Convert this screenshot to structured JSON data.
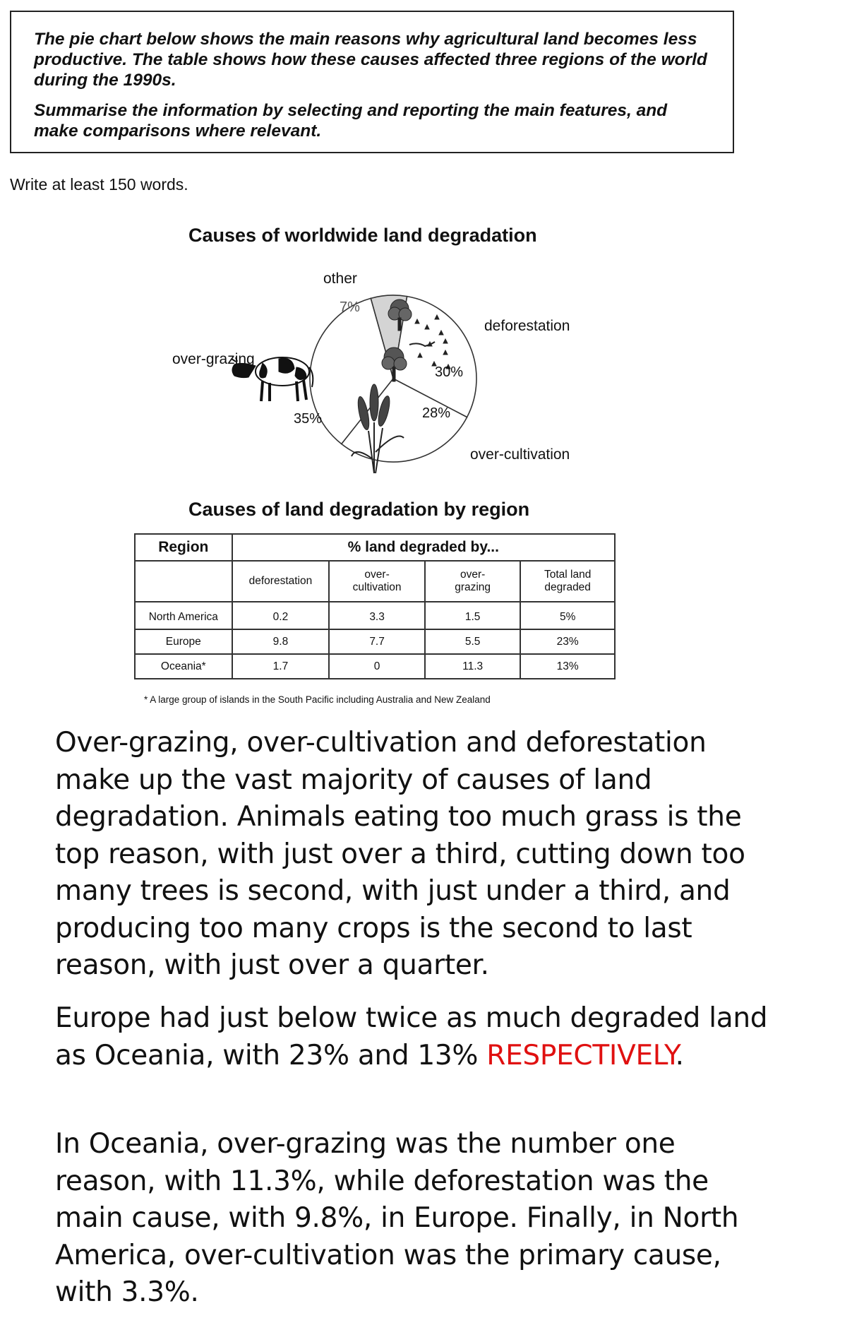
{
  "task": {
    "paragraph1": "The pie chart below shows the main reasons why agricultural land becomes less productive. The table shows how these causes affected three regions of the world during the 1990s.",
    "paragraph2": "Summarise the information by selecting and reporting the main features, and make comparisons where relevant."
  },
  "word_requirement": "Write at least 150 words.",
  "chart_data": [
    {
      "type": "pie",
      "title": "Causes of worldwide land degradation",
      "slices": [
        {
          "label": "other",
          "value": 7,
          "value_label": "7%",
          "color": "#d4d4d4"
        },
        {
          "label": "deforestation",
          "value": 30,
          "value_label": "30%",
          "color": "#ffffff"
        },
        {
          "label": "over-cultivation",
          "value": 28,
          "value_label": "28%",
          "color": "#ffffff"
        },
        {
          "label": "over-grazing",
          "value": 35,
          "value_label": "35%",
          "color": "#ffffff"
        }
      ],
      "icons": [
        "tree-stumps-icon",
        "wheat-icon",
        "cow-icon"
      ]
    },
    {
      "type": "table",
      "title": "Causes of land degradation by region",
      "header_region": "Region",
      "header_group": "% land degraded by...",
      "columns": [
        "deforestation",
        "over-\ncultivation",
        "over-\ngrazing",
        "Total land\ndegraded"
      ],
      "rows": [
        {
          "region": "North America",
          "values": [
            "0.2",
            "3.3",
            "1.5",
            "5%"
          ]
        },
        {
          "region": "Europe",
          "values": [
            "9.8",
            "7.7",
            "5.5",
            "23%"
          ]
        },
        {
          "region": "Oceania*",
          "values": [
            "1.7",
            "0",
            "11.3",
            "13%"
          ]
        }
      ],
      "footnote": "* A large group of islands in the South Pacific including Australia and New Zealand"
    }
  ],
  "essay": {
    "p1_lines": [
      "Over-grazing, over-cultivation and deforestation",
      "make up the vast majority of causes of land",
      "degradation. Animals eating too much grass is the",
      "top reason, with just over a third, cutting down too",
      "many trees is second, with just under a third, and",
      "producing too many crops is the second to last",
      "reason, with just over a quarter."
    ],
    "p2_line1": "Europe had just below twice as much degraded land",
    "p2_line2_prefix": "as Oceania, with 23% and 13% ",
    "p2_emphasis": "RESPECTIVELY",
    "p2_line2_suffix": ".",
    "p3_lines": [
      "In Oceania, over-grazing was the number one",
      "reason, with 11.3%, while deforestation was the",
      "main cause, with 9.8%, in Europe. Finally, in North",
      "America, over-cultivation was the primary cause,",
      "with 3.3%."
    ]
  }
}
